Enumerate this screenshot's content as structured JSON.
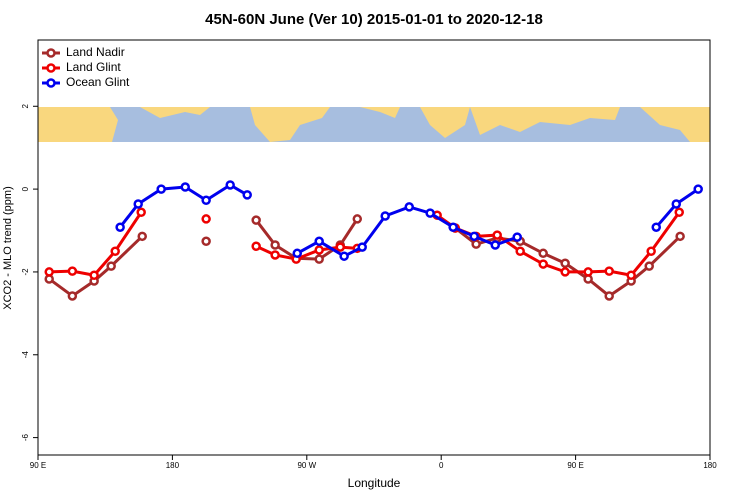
{
  "chart_data": {
    "type": "line",
    "title": "45N-60N June (Ver 10)   2015-01-01 to 2020-12-18",
    "x_label": "Longitude",
    "y_label": "XCO2 - MLO trend (ppm)",
    "xlim": [
      -270,
      180
    ],
    "ylim": [
      -6.42,
      3.6
    ],
    "xticks": [
      {
        "value": -270,
        "label": "90 E"
      },
      {
        "value": -180,
        "label": "180"
      },
      {
        "value": -90,
        "label": "90 W"
      },
      0,
      {
        "value": 90,
        "label": "90 E"
      },
      180
    ],
    "yticks": [
      -6,
      -4,
      -2,
      0,
      2
    ],
    "legend": "top-left",
    "series": [
      {
        "name": "Land Nadir",
        "color": "#a52a2a",
        "x": [
          -262.5,
          -247,
          -232.4,
          -221,
          -200.2,
          null,
          -157.4,
          null,
          -123.9,
          -111.2,
          -97.1,
          -81.7,
          -67.6,
          -56.2,
          null,
          9.4,
          23.4,
          37.5,
          52.9,
          68.3,
          83,
          98.4,
          112.5,
          127.2,
          139.3,
          160
        ],
        "values": [
          -2.17,
          -2.58,
          -2.22,
          -1.86,
          -1.14,
          null,
          -1.26,
          null,
          -0.75,
          -1.35,
          -1.67,
          -1.69,
          -1.35,
          -0.72,
          null,
          -0.94,
          -1.33,
          -1.18,
          -1.26,
          -1.55,
          -1.79,
          -2.17,
          -2.58,
          -2.22,
          -1.86,
          -1.14
        ]
      },
      {
        "name": "Land Glint",
        "color": "#ee0000",
        "x": [
          -262.5,
          -247,
          -232.4,
          -218.3,
          -200.9,
          null,
          -157.4,
          null,
          -123.9,
          -111.2,
          -97.1,
          -81.7,
          -67.6,
          -56.2,
          null,
          -2.7,
          9.4,
          23.4,
          37.5,
          52.9,
          68.3,
          83,
          98.4,
          112.5,
          127.2,
          140.6,
          159.4
        ],
        "values": [
          -2.0,
          -1.98,
          -2.08,
          -1.5,
          -0.56,
          null,
          -0.72,
          null,
          -1.38,
          -1.59,
          -1.69,
          -1.47,
          -1.4,
          -1.43,
          null,
          -0.63,
          -0.94,
          -1.14,
          -1.11,
          -1.5,
          -1.81,
          -2.0,
          -2.0,
          -1.98,
          -2.08,
          -1.5,
          -0.56
        ]
      },
      {
        "name": "Ocean Glint",
        "color": "#0000ee",
        "x": [
          -215,
          -202.9,
          -187.5,
          -171.4,
          -157.4,
          -141.3,
          -129.9,
          null,
          -96.4,
          -81.7,
          -65,
          -52.9,
          -37.5,
          -21.4,
          -7.4,
          8,
          22.1,
          36.2,
          50.9,
          null,
          144,
          157.4,
          172.1
        ],
        "values": [
          -0.92,
          -0.36,
          0,
          0.05,
          -0.27,
          0.1,
          -0.14,
          null,
          -1.55,
          -1.26,
          -1.62,
          -1.4,
          -0.65,
          -0.43,
          -0.58,
          -0.92,
          -1.14,
          -1.35,
          -1.16,
          null,
          -0.92,
          -0.36,
          0
        ]
      }
    ]
  }
}
